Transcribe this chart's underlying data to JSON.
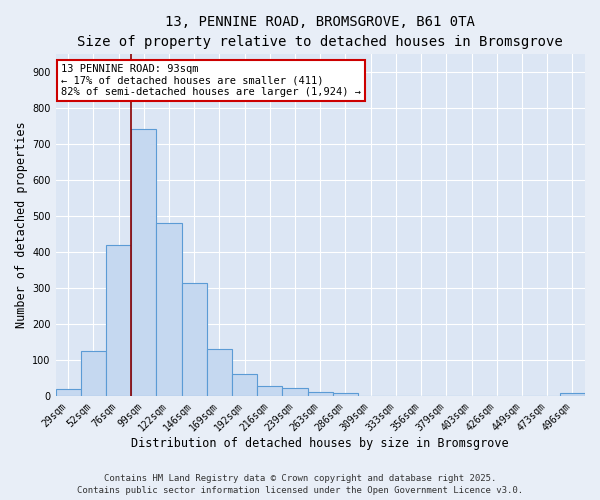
{
  "title_line1": "13, PENNINE ROAD, BROMSGROVE, B61 0TA",
  "title_line2": "Size of property relative to detached houses in Bromsgrove",
  "xlabel": "Distribution of detached houses by size in Bromsgrove",
  "ylabel": "Number of detached properties",
  "bar_labels": [
    "29sqm",
    "52sqm",
    "76sqm",
    "99sqm",
    "122sqm",
    "146sqm",
    "169sqm",
    "192sqm",
    "216sqm",
    "239sqm",
    "263sqm",
    "286sqm",
    "309sqm",
    "333sqm",
    "356sqm",
    "379sqm",
    "403sqm",
    "426sqm",
    "449sqm",
    "473sqm",
    "496sqm"
  ],
  "bar_values": [
    20,
    125,
    420,
    740,
    480,
    315,
    130,
    62,
    28,
    22,
    10,
    8,
    0,
    0,
    0,
    0,
    0,
    0,
    0,
    0,
    8
  ],
  "bar_color": "#c5d8f0",
  "bar_edgecolor": "#5b9bd5",
  "bar_linewidth": 0.8,
  "vline_x_index": 3,
  "vline_color": "#8b0000",
  "vline_linewidth": 1.2,
  "ylim": [
    0,
    950
  ],
  "yticks": [
    0,
    100,
    200,
    300,
    400,
    500,
    600,
    700,
    800,
    900
  ],
  "annotation_title": "13 PENNINE ROAD: 93sqm",
  "annotation_line1": "← 17% of detached houses are smaller (411)",
  "annotation_line2": "82% of semi-detached houses are larger (1,924) →",
  "annotation_box_color": "#ffffff",
  "annotation_box_edgecolor": "#cc0000",
  "background_color": "#e8eef7",
  "plot_bg_color": "#dce6f4",
  "footer_line1": "Contains HM Land Registry data © Crown copyright and database right 2025.",
  "footer_line2": "Contains public sector information licensed under the Open Government Licence v3.0.",
  "grid_color": "#ffffff",
  "title_fontsize": 10,
  "subtitle_fontsize": 9,
  "axis_label_fontsize": 8.5,
  "tick_fontsize": 7,
  "annotation_fontsize": 7.5,
  "footer_fontsize": 6.5
}
